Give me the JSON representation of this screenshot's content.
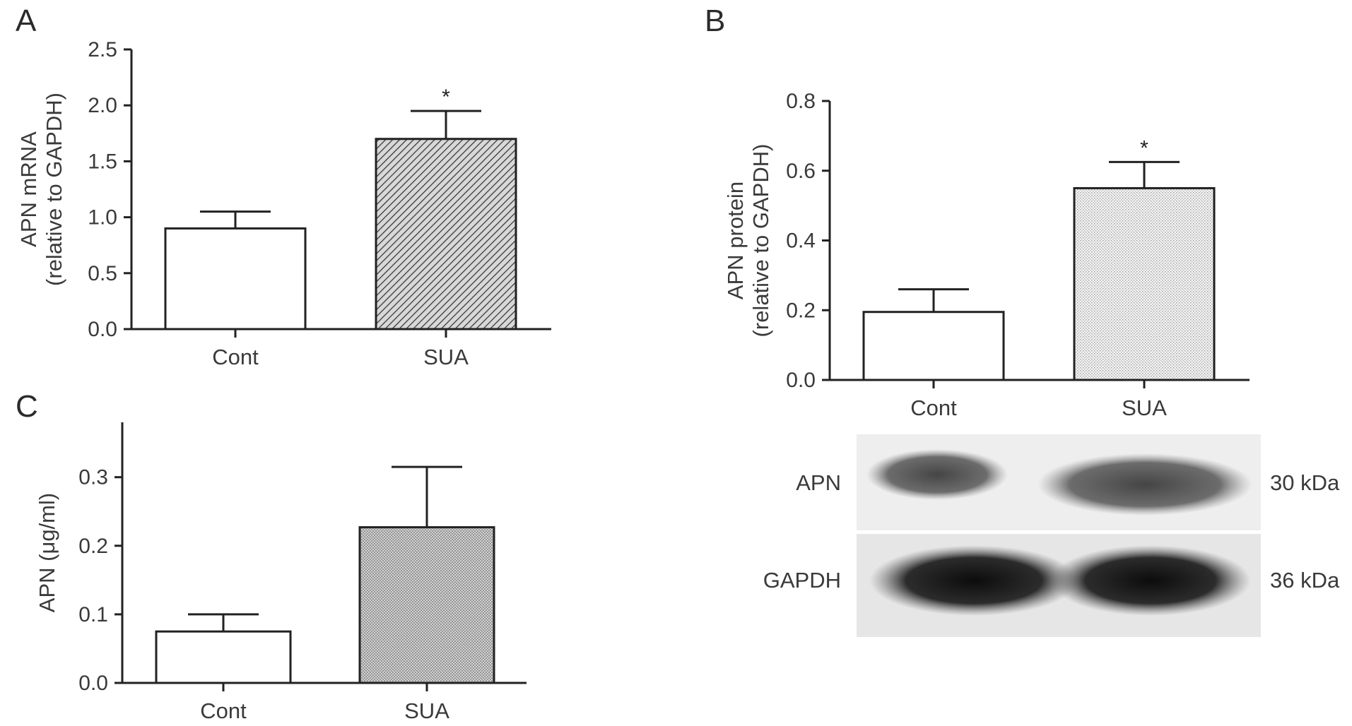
{
  "chart_data": [
    {
      "panel": "A",
      "type": "bar",
      "ylabel_line1": "APN mRNA",
      "ylabel_line2": "(relative to GAPDH)",
      "ylim": [
        0,
        2.5
      ],
      "yticks": [
        "0.0",
        "0.5",
        "1.0",
        "1.5",
        "2.0",
        "2.5"
      ],
      "categories": [
        "Cont",
        "SUA"
      ],
      "values": [
        0.9,
        1.7
      ],
      "errors": [
        0.15,
        0.25
      ],
      "fills": [
        "blank",
        "diagonal-hatch"
      ],
      "significance": [
        "",
        "*"
      ]
    },
    {
      "panel": "B",
      "type": "bar",
      "ylabel_line1": "APN protein",
      "ylabel_line2": "(relative to GAPDH)",
      "ylim": [
        0,
        0.8
      ],
      "yticks": [
        "0.0",
        "0.2",
        "0.4",
        "0.6",
        "0.8"
      ],
      "categories": [
        "Cont",
        "SUA"
      ],
      "values": [
        0.195,
        0.55
      ],
      "errors": [
        0.065,
        0.075
      ],
      "fills": [
        "blank",
        "fine-dot"
      ],
      "significance": [
        "",
        "*"
      ]
    },
    {
      "panel": "C",
      "type": "bar",
      "ylabel_line1": "APN (μg/ml)",
      "ylabel_line2": "",
      "ylim": [
        0,
        0.38
      ],
      "yticks": [
        "0.0",
        "0.1",
        "0.2",
        "0.3"
      ],
      "categories": [
        "Cont",
        "SUA"
      ],
      "values": [
        0.075,
        0.227
      ],
      "errors": [
        0.025,
        0.088
      ],
      "fills": [
        "blank",
        "crosshatch"
      ],
      "significance": [
        "",
        ""
      ]
    }
  ],
  "blot": {
    "rows": [
      {
        "label": "APN",
        "size": "30 kDa"
      },
      {
        "label": "GAPDH",
        "size": "36 kDa"
      }
    ]
  }
}
